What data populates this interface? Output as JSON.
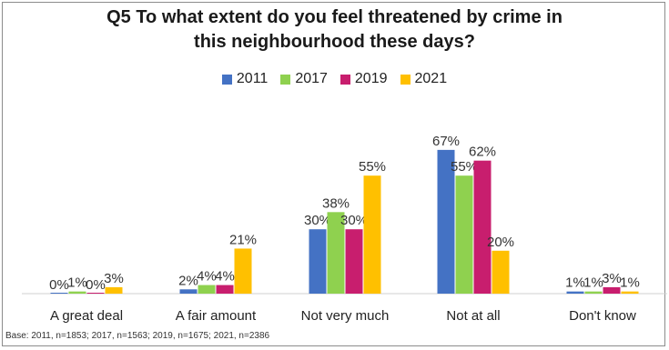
{
  "chart_data": {
    "type": "bar",
    "title_lines": [
      "Q5 To what extent do you feel threatened by crime in",
      "this neighbourhood these days?"
    ],
    "categories": [
      "A great deal",
      "A fair amount",
      "Not very much",
      "Not at all",
      "Don't know"
    ],
    "series": [
      {
        "name": "2011",
        "color": "#4472c4",
        "values": [
          0,
          2,
          30,
          67,
          1
        ],
        "labels": [
          "0%",
          "2%",
          "30%",
          "67%",
          "1%"
        ]
      },
      {
        "name": "2017",
        "color": "#8fd14f",
        "values": [
          1,
          4,
          38,
          55,
          1
        ],
        "labels": [
          "1%",
          "4%",
          "38%",
          "55%",
          "1%"
        ]
      },
      {
        "name": "2019",
        "color": "#c81e6e",
        "values": [
          0,
          4,
          30,
          62,
          3
        ],
        "labels": [
          "0%",
          "4%",
          "30%",
          "62%",
          "3%"
        ]
      },
      {
        "name": "2021",
        "color": "#ffc000",
        "values": [
          3,
          21,
          55,
          20,
          1
        ],
        "labels": [
          "3%",
          "21%",
          "55%",
          "20%",
          "1%"
        ]
      }
    ],
    "ylim": [
      0,
      70
    ],
    "legend_position": "top",
    "grid": false,
    "base_note": "Base: 2011, n=1853; 2017, n=1563; 2019, n=1675; 2021, n=2386"
  }
}
